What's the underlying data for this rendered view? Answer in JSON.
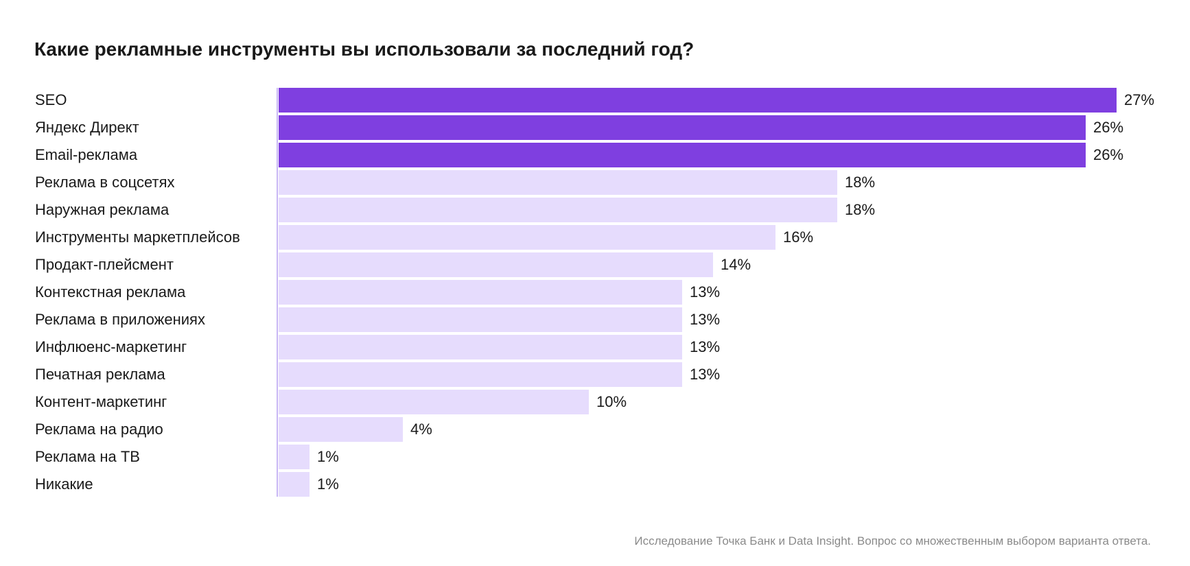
{
  "chart_data": {
    "type": "bar",
    "orientation": "horizontal",
    "title": "Какие рекламные инструменты вы использовали за последний год?",
    "categories": [
      "SEO",
      "Яндекс Директ",
      "Email-реклама",
      "Реклама в соцсетях",
      "Наружная реклама",
      "Инструменты маркетплейсов",
      "Продакт-плейсмент",
      "Контекстная реклама",
      "Реклама в приложениях",
      "Инфлюенс-маркетинг",
      "Печатная реклама",
      "Контент-маркетинг",
      "Реклама на радио",
      "Реклама на ТВ",
      "Никакие"
    ],
    "values": [
      27,
      26,
      26,
      18,
      18,
      16,
      14,
      13,
      13,
      13,
      13,
      10,
      4,
      1,
      1
    ],
    "value_labels": [
      "27%",
      "26%",
      "26%",
      "18%",
      "18%",
      "16%",
      "14%",
      "13%",
      "13%",
      "13%",
      "13%",
      "10%",
      "4%",
      "1%",
      "1%"
    ],
    "highlighted": [
      true,
      true,
      true,
      false,
      false,
      false,
      false,
      false,
      false,
      false,
      false,
      false,
      false,
      false,
      false
    ],
    "xlim": [
      0,
      27
    ],
    "grid": false,
    "legend": "none",
    "colors": {
      "highlight": "#7f3fe0",
      "default": "#e6dcfd",
      "axis": "#c8b6f5"
    }
  },
  "footnote": "Исследование Точка Банк и Data Insight. Вопрос со множественным выбором варианта ответа."
}
